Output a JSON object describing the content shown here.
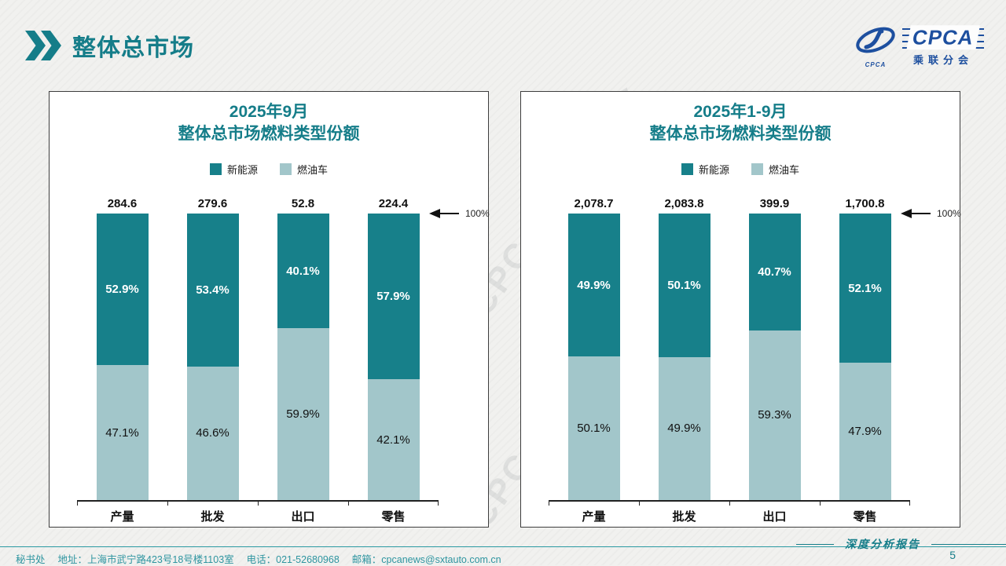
{
  "header": {
    "title": "整体总市场"
  },
  "logo": {
    "main": "CPCA",
    "sub": "乘联分会",
    "emblem_text": "CPCA",
    "brand_color": "#1d4f9f"
  },
  "watermark": "CPCA 乘联分会",
  "accent_color": "#157d89",
  "chart_data": [
    {
      "type": "bar",
      "stacked": true,
      "title_line1": "2025年9月",
      "title_line2": "整体总市场燃料类型份额",
      "categories": [
        "产量",
        "批发",
        "出口",
        "零售"
      ],
      "totals": [
        "284.6",
        "279.6",
        "52.8",
        "224.4"
      ],
      "series": [
        {
          "name": "新能源",
          "color": "#17808a",
          "values": [
            52.9,
            53.4,
            40.1,
            57.9
          ]
        },
        {
          "name": "燃油车",
          "color": "#a2c6ca",
          "values": [
            47.1,
            46.6,
            59.9,
            42.1
          ]
        }
      ],
      "ylim": [
        0,
        100
      ],
      "legend_position": "top",
      "annotation": "100%"
    },
    {
      "type": "bar",
      "stacked": true,
      "title_line1": "2025年1-9月",
      "title_line2": "整体总市场燃料类型份额",
      "categories": [
        "产量",
        "批发",
        "出口",
        "零售"
      ],
      "totals": [
        "2,078.7",
        "2,083.8",
        "399.9",
        "1,700.8"
      ],
      "series": [
        {
          "name": "新能源",
          "color": "#17808a",
          "values": [
            49.9,
            50.1,
            40.7,
            52.1
          ]
        },
        {
          "name": "燃油车",
          "color": "#a2c6ca",
          "values": [
            50.1,
            49.9,
            59.3,
            47.9
          ]
        }
      ],
      "ylim": [
        0,
        100
      ],
      "legend_position": "top",
      "annotation": "100%"
    }
  ],
  "footer": {
    "items": [
      "秘书处",
      "地址：上海市武宁路423号18号楼1103室",
      "电话：021-52680968",
      "邮箱：cpcanews@sxtauto.com.cn"
    ],
    "report_label": "深度分析报告",
    "page_number": "5"
  }
}
